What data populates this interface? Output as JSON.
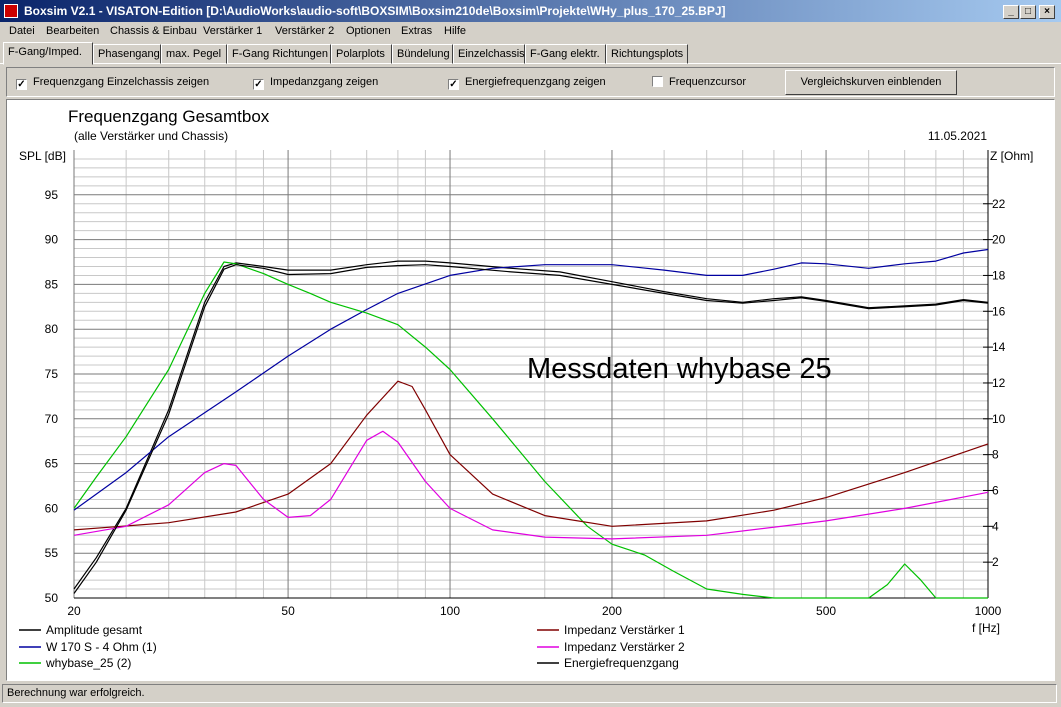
{
  "window": {
    "title": "Boxsim V2.1 - VISATON-Edition [D:\\AudioWorks\\audio-soft\\BOXSIM\\Boxsim210de\\Boxsim\\Projekte\\WHy_plus_170_25.BPJ]",
    "minimize_glyph": "_",
    "maximize_glyph": "□",
    "close_glyph": "×"
  },
  "menu": [
    "Datei",
    "Bearbeiten",
    "Chassis & Einbau",
    "Verstärker 1",
    "Verstärker 2",
    "Optionen",
    "Extras",
    "Hilfe"
  ],
  "tabs": [
    "F-Gang/Imped.",
    "Phasengang",
    "max. Pegel",
    "F-Gang Richtungen",
    "Polarplots",
    "Bündelung",
    "Einzelchassis",
    "F-Gang elektr.",
    "Richtungsplots"
  ],
  "active_tab": 0,
  "options": [
    {
      "label": "Frequenzgang Einzelchassis zeigen",
      "checked": true
    },
    {
      "label": "Impedanzgang zeigen",
      "checked": true
    },
    {
      "label": "Energiefrequenzgang zeigen",
      "checked": true
    },
    {
      "label": "Frequenzcursor",
      "checked": false
    }
  ],
  "check_glyph": "✓",
  "compare_button": "Vergleichskurven einblenden",
  "status": "Berechnung war erfolgreich.",
  "chart_data": {
    "type": "line",
    "title": "Frequenzgang Gesamtbox",
    "subtitle": "(alle Verstärker und Chassis)",
    "date": "11.05.2021",
    "annotation": "Messdaten whybase 25",
    "xlabel": "f [Hz]",
    "ylabel": "SPL [dB]",
    "y2label": "Z [Ohm]",
    "xscale": "log",
    "xlim": [
      20,
      1000
    ],
    "ylim": [
      50,
      100
    ],
    "y2lim": [
      0,
      25
    ],
    "x_ticks": [
      20,
      50,
      100,
      200,
      500,
      1000
    ],
    "y_ticks": [
      50,
      55,
      60,
      65,
      70,
      75,
      80,
      85,
      90,
      95
    ],
    "y2_ticks": [
      2,
      4,
      6,
      8,
      10,
      12,
      14,
      16,
      18,
      20,
      22
    ],
    "grid": true,
    "series": [
      {
        "name": "Amplitude gesamt",
        "color": "#000000",
        "axis": "left",
        "points": [
          [
            20,
            51
          ],
          [
            22,
            54.5
          ],
          [
            25,
            60
          ],
          [
            30,
            71
          ],
          [
            35,
            83
          ],
          [
            38,
            87
          ],
          [
            40,
            87.4
          ],
          [
            45,
            87
          ],
          [
            50,
            86.6
          ],
          [
            60,
            86.6
          ],
          [
            70,
            87.2
          ],
          [
            80,
            87.6
          ],
          [
            90,
            87.6
          ],
          [
            100,
            87.4
          ],
          [
            130,
            86.8
          ],
          [
            160,
            86.4
          ],
          [
            200,
            85.3
          ],
          [
            250,
            84.2
          ],
          [
            300,
            83.4
          ],
          [
            350,
            83
          ],
          [
            400,
            83.4
          ],
          [
            450,
            83.6
          ],
          [
            500,
            83.2
          ],
          [
            600,
            82.4
          ],
          [
            700,
            82.6
          ],
          [
            800,
            82.8
          ],
          [
            900,
            83.3
          ],
          [
            1000,
            83
          ]
        ]
      },
      {
        "name": "W 170 S - 4 Ohm (1)",
        "color": "#0000a0",
        "axis": "left",
        "points": [
          [
            20,
            59.8
          ],
          [
            25,
            64
          ],
          [
            30,
            68
          ],
          [
            40,
            73
          ],
          [
            50,
            77
          ],
          [
            60,
            80
          ],
          [
            70,
            82.2
          ],
          [
            80,
            84
          ],
          [
            100,
            86
          ],
          [
            120,
            86.8
          ],
          [
            150,
            87.2
          ],
          [
            200,
            87.2
          ],
          [
            250,
            86.6
          ],
          [
            300,
            86
          ],
          [
            350,
            86
          ],
          [
            400,
            86.7
          ],
          [
            450,
            87.4
          ],
          [
            500,
            87.3
          ],
          [
            600,
            86.8
          ],
          [
            700,
            87.3
          ],
          [
            800,
            87.6
          ],
          [
            900,
            88.5
          ],
          [
            1000,
            88.9
          ]
        ]
      },
      {
        "name": "whybase_25 (2)",
        "color": "#00c000",
        "axis": "left",
        "points": [
          [
            20,
            60
          ],
          [
            22,
            63.5
          ],
          [
            25,
            68
          ],
          [
            30,
            75.5
          ],
          [
            35,
            84
          ],
          [
            38,
            87.5
          ],
          [
            40,
            87.3
          ],
          [
            45,
            86.2
          ],
          [
            50,
            85
          ],
          [
            55,
            84
          ],
          [
            60,
            83
          ],
          [
            70,
            81.8
          ],
          [
            80,
            80.5
          ],
          [
            90,
            78
          ],
          [
            100,
            75.5
          ],
          [
            120,
            70
          ],
          [
            150,
            63
          ],
          [
            180,
            58
          ],
          [
            200,
            56
          ],
          [
            230,
            54.8
          ],
          [
            260,
            53
          ],
          [
            300,
            51
          ],
          [
            350,
            50.4
          ],
          [
            400,
            50
          ],
          [
            500,
            50
          ],
          [
            600,
            50
          ],
          [
            650,
            51.5
          ],
          [
            700,
            53.8
          ],
          [
            750,
            52
          ],
          [
            800,
            50
          ],
          [
            1000,
            50
          ]
        ]
      },
      {
        "name": "Impedanz Verstärker 1",
        "color": "#800000",
        "axis": "right",
        "points": [
          [
            20,
            3.8
          ],
          [
            30,
            4.2
          ],
          [
            40,
            4.8
          ],
          [
            50,
            5.8
          ],
          [
            60,
            7.5
          ],
          [
            70,
            10.2
          ],
          [
            80,
            12.1
          ],
          [
            85,
            11.8
          ],
          [
            90,
            10.5
          ],
          [
            100,
            8
          ],
          [
            120,
            5.8
          ],
          [
            150,
            4.6
          ],
          [
            200,
            4
          ],
          [
            300,
            4.3
          ],
          [
            400,
            4.9
          ],
          [
            500,
            5.6
          ],
          [
            700,
            7
          ],
          [
            1000,
            8.6
          ]
        ]
      },
      {
        "name": "Impedanz Verstärker 2",
        "color": "#e000e0",
        "axis": "right",
        "points": [
          [
            20,
            3.5
          ],
          [
            25,
            4
          ],
          [
            30,
            5.2
          ],
          [
            35,
            7
          ],
          [
            38,
            7.5
          ],
          [
            40,
            7.4
          ],
          [
            45,
            5.5
          ],
          [
            50,
            4.5
          ],
          [
            55,
            4.6
          ],
          [
            60,
            5.5
          ],
          [
            70,
            8.8
          ],
          [
            75,
            9.3
          ],
          [
            80,
            8.7
          ],
          [
            90,
            6.5
          ],
          [
            100,
            5
          ],
          [
            120,
            3.8
          ],
          [
            150,
            3.4
          ],
          [
            200,
            3.3
          ],
          [
            300,
            3.5
          ],
          [
            500,
            4.3
          ],
          [
            700,
            5
          ],
          [
            1000,
            5.9
          ]
        ]
      },
      {
        "name": "Energiefrequenzgang",
        "color": "#000000",
        "axis": "left",
        "points": [
          [
            20,
            50.5
          ],
          [
            22,
            54
          ],
          [
            25,
            59.8
          ],
          [
            30,
            70.5
          ],
          [
            35,
            82.5
          ],
          [
            38,
            86.7
          ],
          [
            40,
            87.2
          ],
          [
            45,
            86.8
          ],
          [
            50,
            86.1
          ],
          [
            60,
            86.2
          ],
          [
            70,
            86.9
          ],
          [
            80,
            87.1
          ],
          [
            90,
            87.2
          ],
          [
            100,
            87
          ],
          [
            130,
            86.4
          ],
          [
            160,
            86
          ],
          [
            200,
            85
          ],
          [
            250,
            84
          ],
          [
            300,
            83.2
          ],
          [
            350,
            82.9
          ],
          [
            400,
            83.2
          ],
          [
            450,
            83.5
          ],
          [
            500,
            83.1
          ],
          [
            600,
            82.3
          ],
          [
            700,
            82.5
          ],
          [
            800,
            82.7
          ],
          [
            900,
            83.2
          ],
          [
            1000,
            82.9
          ]
        ]
      }
    ]
  }
}
